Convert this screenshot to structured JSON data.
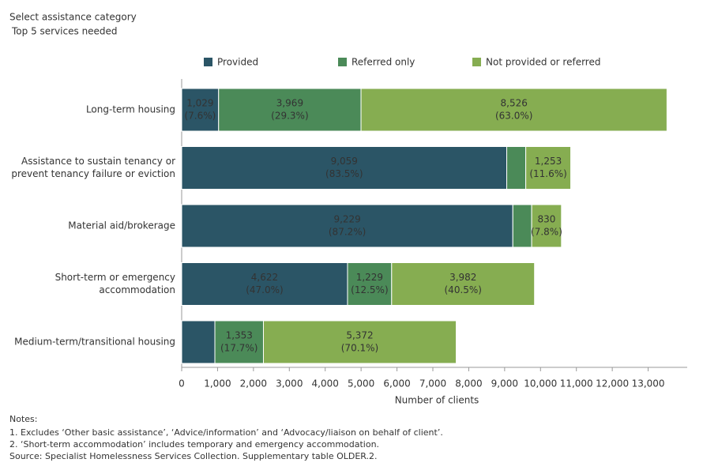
{
  "header": {
    "title": "Select assistance category",
    "subtitle": "Top 5 services needed"
  },
  "chart_data": {
    "type": "stacked-barh",
    "categories": [
      [
        "Long-term housing"
      ],
      [
        "Assistance to sustain tenancy or",
        "prevent tenancy failure or eviction"
      ],
      [
        "Material aid/brokerage"
      ],
      [
        "Short-term or emergency",
        "accommodation"
      ],
      [
        "Medium-term/transitional housing"
      ]
    ],
    "series": [
      {
        "name": "Provided",
        "color": "#2b5566",
        "values": [
          1029,
          9059,
          9229,
          4622,
          925
        ],
        "value_labels": [
          "1,029",
          "9,059",
          "9,229",
          "4,622",
          null
        ],
        "share_labels": [
          "(7.6%)",
          "(83.5%)",
          "(87.2%)",
          "(47.0%)",
          null
        ]
      },
      {
        "name": "Referred only",
        "color": "#4b8a58",
        "values": [
          3969,
          530,
          525,
          1229,
          1353
        ],
        "value_labels": [
          "3,969",
          null,
          null,
          "1,229",
          "1,353"
        ],
        "share_labels": [
          "(29.3%)",
          null,
          null,
          "(12.5%)",
          "(17.7%)"
        ]
      },
      {
        "name": "Not provided or referred",
        "color": "#86ad51",
        "values": [
          8526,
          1253,
          830,
          3982,
          5372
        ],
        "value_labels": [
          "8,526",
          "1,253",
          "830",
          "3,982",
          "5,372"
        ],
        "share_labels": [
          "(63.0%)",
          "(11.6%)",
          "(7.8%)",
          "(40.5%)",
          "(70.1%)"
        ]
      }
    ],
    "xlabel": "Number of clients",
    "xlim": [
      0,
      14000
    ],
    "xticks": [
      0,
      {
        "value": 1000,
        "label": "1,000"
      },
      {
        "value": 2000,
        "label": "2,000"
      },
      {
        "value": 3000,
        "label": "3,000"
      },
      {
        "value": 4000,
        "label": "4,000"
      },
      {
        "value": 5000,
        "label": "5,000"
      },
      {
        "value": 6000,
        "label": "6,000"
      },
      {
        "value": 7000,
        "label": "7,000"
      },
      {
        "value": 8000,
        "label": "8,000"
      },
      {
        "value": 9000,
        "label": "9,000"
      },
      {
        "value": 10000,
        "label": "10,000"
      },
      {
        "value": 11000,
        "label": "11,000"
      },
      {
        "value": 12000,
        "label": "12,000"
      },
      {
        "value": 13000,
        "label": "13,000"
      }
    ]
  },
  "notes": [
    "Notes:",
    "1. Excludes ‘Other basic assistance’, ‘Advice/information’ and ‘Advocacy/liaison on behalf of client’.",
    "2. ‘Short-term accommodation’ includes temporary and emergency accommodation.",
    "Source: Specialist Homelessness Services Collection. Supplementary table OLDER.2."
  ]
}
